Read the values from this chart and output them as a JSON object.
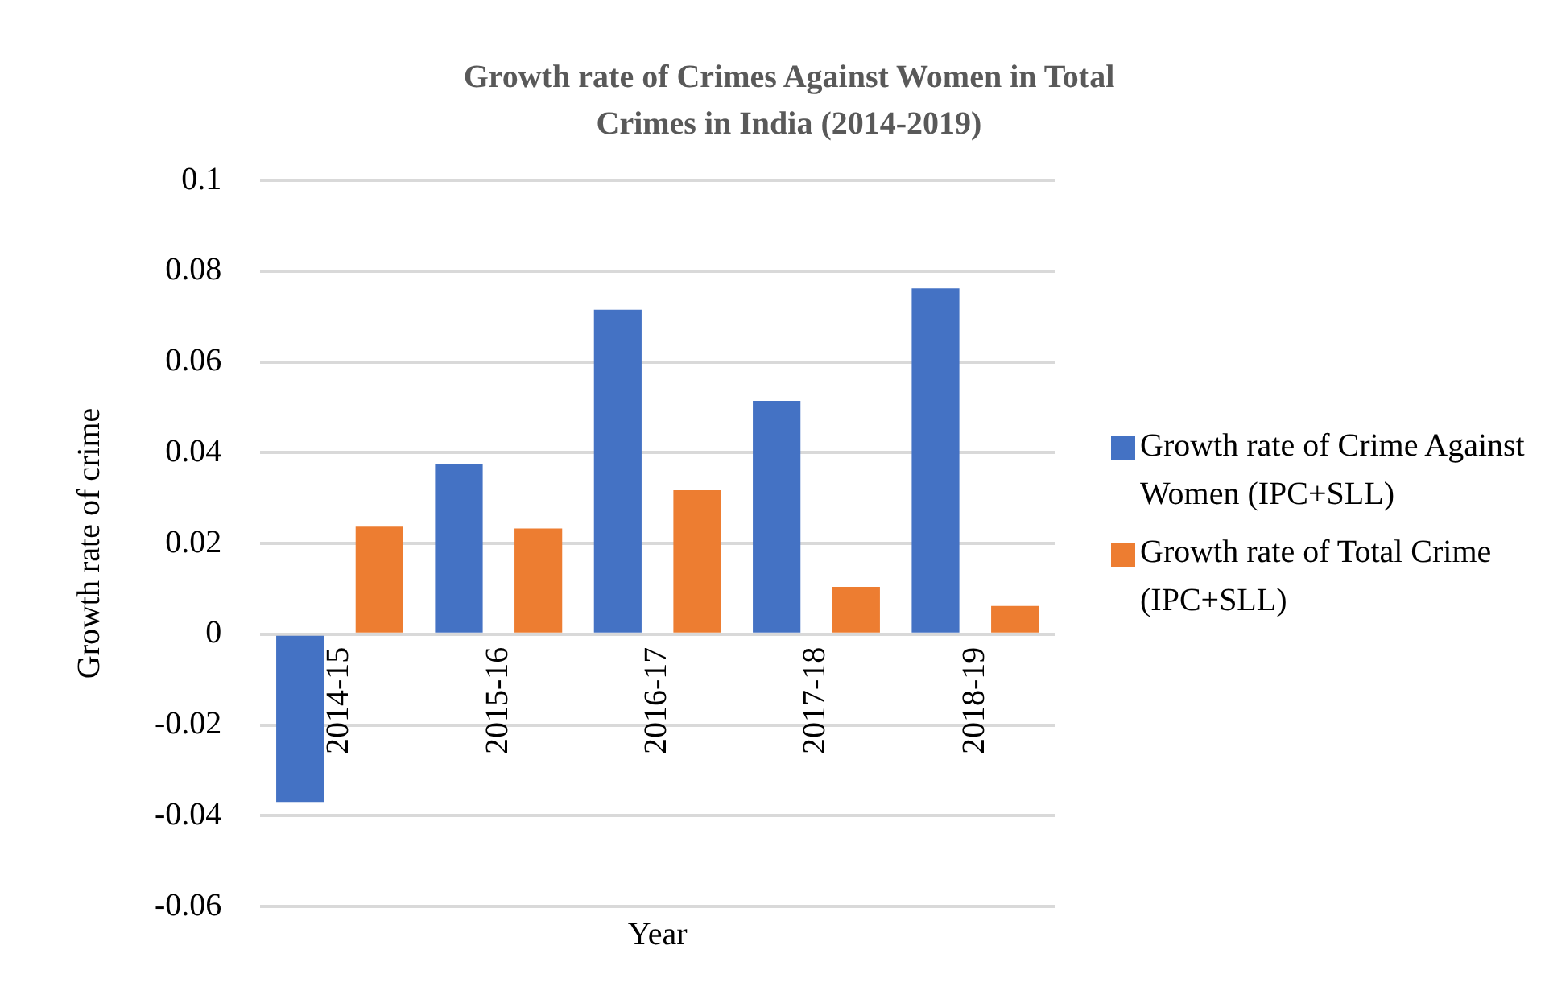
{
  "chart_data": {
    "type": "bar",
    "title": "Growth rate of Crimes Against Women in Total Crimes in India (2014-2019)",
    "xlabel": "Year",
    "ylabel": "Growth rate of crime",
    "categories": [
      "2014-15",
      "2015-16",
      "2016-17",
      "2017-18",
      "2018-19"
    ],
    "series": [
      {
        "name": "Growth rate of Crime Against Women (IPC+SLL)",
        "color": "#4472c4",
        "values": [
          -0.037,
          0.0375,
          0.0715,
          0.0514,
          0.0762
        ]
      },
      {
        "name": "Growth rate of Total Crime (IPC+SLL)",
        "color": "#ed7d31",
        "values": [
          0.0237,
          0.0233,
          0.0317,
          0.0104,
          0.0062
        ]
      }
    ],
    "ylim": [
      -0.06,
      0.1
    ],
    "yticks": [
      -0.06,
      -0.04,
      -0.02,
      0,
      0.02,
      0.04,
      0.06,
      0.08,
      0.1
    ],
    "grid": "y",
    "legend": "right"
  }
}
